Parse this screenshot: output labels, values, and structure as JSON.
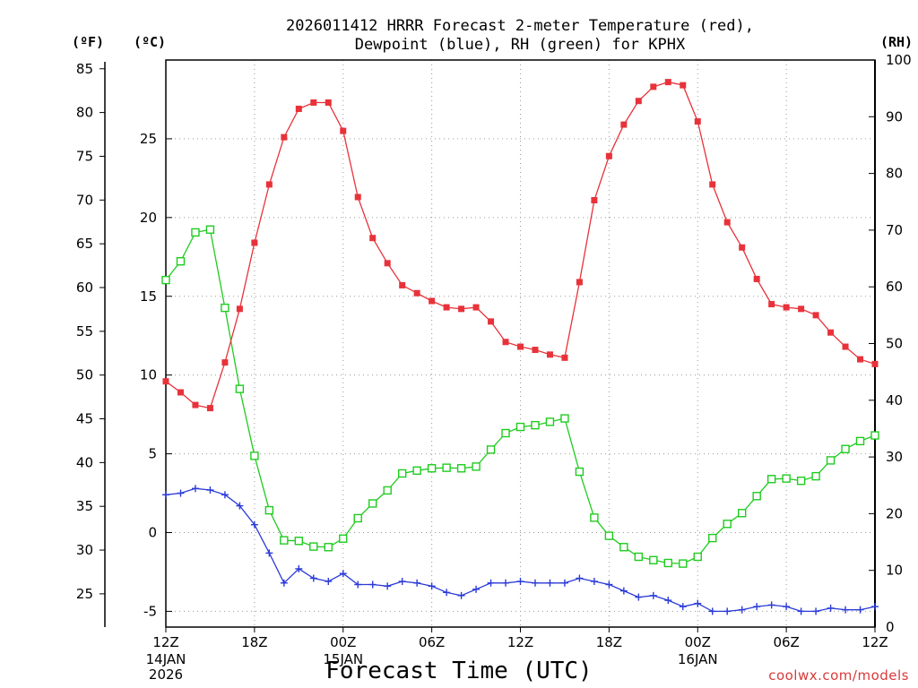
{
  "chart_data": {
    "type": "line",
    "title_line1": "2026011412 HRRR Forecast 2-meter Temperature (red),",
    "title_line2": "Dewpoint (blue), RH (green) for KPHX",
    "units": {
      "fahrenheit": "(ºF)",
      "celsius": "(ºC)",
      "rh": "(RH)"
    },
    "xlabel": "Forecast Time (UTC)",
    "credit": "coolwx.com/models",
    "x_start": "2026-01-14T12:00Z",
    "x_range_hours": [
      0,
      48
    ],
    "x_ticks": [
      {
        "hour": 0,
        "label": "12Z",
        "sub": [
          "14JAN",
          "2026"
        ]
      },
      {
        "hour": 6,
        "label": "18Z",
        "sub": []
      },
      {
        "hour": 12,
        "label": "00Z",
        "sub": [
          "15JAN"
        ]
      },
      {
        "hour": 18,
        "label": "06Z",
        "sub": []
      },
      {
        "hour": 24,
        "label": "12Z",
        "sub": []
      },
      {
        "hour": 30,
        "label": "18Z",
        "sub": []
      },
      {
        "hour": 36,
        "label": "00Z",
        "sub": [
          "16JAN"
        ]
      },
      {
        "hour": 42,
        "label": "06Z",
        "sub": []
      },
      {
        "hour": 48,
        "label": "12Z",
        "sub": []
      }
    ],
    "y_celsius": {
      "range": [
        -6,
        30
      ],
      "ticks": [
        -5,
        0,
        5,
        10,
        15,
        20,
        25
      ],
      "grid": true
    },
    "y_fahrenheit": {
      "range": [
        21.2,
        86
      ],
      "ticks": [
        25,
        30,
        35,
        40,
        45,
        50,
        55,
        60,
        65,
        70,
        75,
        80,
        85
      ]
    },
    "y_rh": {
      "range": [
        0,
        100
      ],
      "ticks": [
        0,
        10,
        20,
        30,
        40,
        50,
        60,
        70,
        80,
        90,
        100
      ]
    },
    "series": [
      {
        "name": "Temperature",
        "axis": "celsius",
        "color": "#e8323a",
        "marker": "filled-square",
        "values": [
          9.6,
          8.9,
          8.1,
          7.9,
          10.8,
          14.2,
          18.4,
          22.1,
          25.1,
          26.9,
          27.3,
          27.3,
          25.5,
          21.3,
          18.7,
          17.1,
          15.7,
          15.2,
          14.7,
          14.3,
          14.2,
          14.3,
          13.4,
          12.1,
          11.8,
          11.6,
          11.3,
          11.1,
          15.9,
          21.1,
          23.9,
          25.9,
          27.4,
          28.3,
          28.6,
          28.4,
          26.1,
          22.1,
          19.7,
          18.1,
          16.1,
          14.5,
          14.3,
          14.2,
          13.8,
          12.7,
          11.8,
          11.0,
          10.7
        ]
      },
      {
        "name": "Dewpoint",
        "axis": "celsius",
        "color": "#2a3ad8",
        "marker": "plus",
        "values": [
          2.4,
          2.5,
          2.8,
          2.7,
          2.4,
          1.7,
          0.5,
          -1.3,
          -3.2,
          -2.3,
          -2.9,
          -3.1,
          -2.6,
          -3.3,
          -3.3,
          -3.4,
          -3.1,
          -3.2,
          -3.4,
          -3.8,
          -4.0,
          -3.6,
          -3.2,
          -3.2,
          -3.1,
          -3.2,
          -3.2,
          -3.2,
          -2.9,
          -3.1,
          -3.3,
          -3.7,
          -4.1,
          -4.0,
          -4.3,
          -4.7,
          -4.5,
          -5.0,
          -5.0,
          -4.9,
          -4.7,
          -4.6,
          -4.7,
          -5.0,
          -5.0,
          -4.8,
          -4.9,
          -4.9,
          -4.7
        ]
      },
      {
        "name": "RH",
        "axis": "rh",
        "color": "#1fcc1f",
        "marker": "open-square",
        "values": [
          61.2,
          64.5,
          69.6,
          70.1,
          56.3,
          42,
          30.2,
          20.6,
          15.3,
          15.2,
          14.2,
          14.1,
          15.6,
          19.2,
          21.8,
          24.1,
          27.1,
          27.6,
          28,
          28.1,
          28,
          28.3,
          31.3,
          34.2,
          35.3,
          35.6,
          36.2,
          36.8,
          27.4,
          19.3,
          16.1,
          14.1,
          12.4,
          11.8,
          11.3,
          11.2,
          12.4,
          15.7,
          18.2,
          20.1,
          23.1,
          26.1,
          26.2,
          25.8,
          26.6,
          29.4,
          31.4,
          32.8,
          33.8
        ]
      }
    ]
  }
}
